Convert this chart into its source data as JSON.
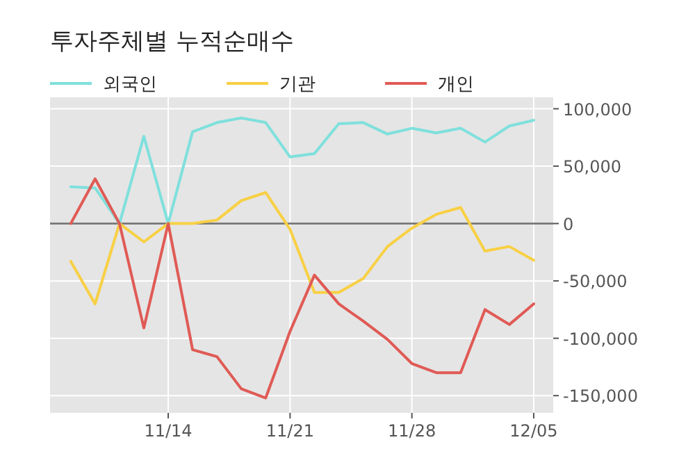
{
  "chart_data": {
    "type": "line",
    "title": "투자주체별 누적순매수",
    "categories": [
      null,
      null,
      null,
      null,
      "11/14",
      null,
      null,
      null,
      null,
      "11/21",
      null,
      null,
      null,
      null,
      "11/28",
      null,
      null,
      null,
      null,
      "12/05"
    ],
    "series": [
      {
        "name": "외국인",
        "color": "#7fe0dc",
        "values": [
          32000,
          31000,
          0,
          76000,
          0,
          80000,
          88000,
          92000,
          88000,
          58000,
          61000,
          87000,
          88000,
          78000,
          83000,
          79000,
          83000,
          71000,
          85000,
          90000
        ]
      },
      {
        "name": "기관",
        "color": "#f8d044",
        "values": [
          -33000,
          -70000,
          0,
          -16000,
          0,
          0,
          3000,
          20000,
          27000,
          -5000,
          -60000,
          -60000,
          -48000,
          -20000,
          -4000,
          8000,
          14000,
          -24000,
          -20000,
          -32000
        ]
      },
      {
        "name": "개인",
        "color": "#e05a55",
        "values": [
          0,
          39000,
          0,
          -91000,
          0,
          -110000,
          -116000,
          -144000,
          -152000,
          -94000,
          -45000,
          -70000,
          -85000,
          -101000,
          -122000,
          -130000,
          -130000,
          -75000,
          -88000,
          -70000
        ]
      }
    ],
    "ylim": [
      -165000,
      110000
    ],
    "yticks": [
      {
        "value": -150000,
        "label": "-150,000"
      },
      {
        "value": -100000,
        "label": "-100,000"
      },
      {
        "value": -50000,
        "label": "-50,000"
      },
      0,
      {
        "value": 50000,
        "label": "50,000"
      },
      {
        "value": 100000,
        "label": "100,000"
      }
    ],
    "grid": true,
    "legend": "top left",
    "ref_lines": [
      {
        "axis": "y",
        "value": 0,
        "color": "#777777"
      }
    ]
  }
}
